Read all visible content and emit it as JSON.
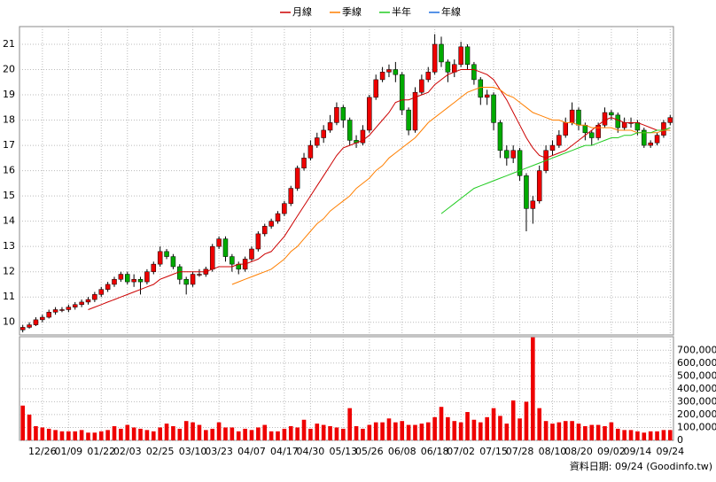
{
  "chart_data": {
    "type": "candlestick",
    "categories": [
      null,
      null,
      null,
      "12/26",
      null,
      null,
      null,
      "01/09",
      null,
      null,
      null,
      null,
      "01/22",
      null,
      null,
      null,
      "02/03",
      null,
      null,
      null,
      null,
      "02/25",
      null,
      null,
      null,
      null,
      "03/10",
      null,
      null,
      null,
      "03/23",
      null,
      null,
      null,
      null,
      "04/07",
      null,
      null,
      null,
      null,
      "04/17",
      null,
      null,
      null,
      "04/30",
      null,
      null,
      null,
      null,
      "05/13",
      null,
      null,
      null,
      "05/26",
      null,
      null,
      null,
      null,
      "06/08",
      null,
      null,
      null,
      null,
      "06/18",
      null,
      null,
      null,
      "07/02",
      null,
      null,
      null,
      null,
      "07/15",
      null,
      null,
      null,
      "07/28",
      null,
      null,
      null,
      null,
      "08/10",
      null,
      null,
      null,
      "08/20",
      null,
      null,
      null,
      null,
      "09/02",
      null,
      null,
      null,
      "09/14",
      null,
      null,
      null,
      null,
      "09/24"
    ],
    "open": [
      9.7,
      9.8,
      9.9,
      10.1,
      10.2,
      10.4,
      10.5,
      10.5,
      10.6,
      10.7,
      10.8,
      10.9,
      11.1,
      11.3,
      11.5,
      11.7,
      11.9,
      11.6,
      11.7,
      11.6,
      12.0,
      12.3,
      12.8,
      12.6,
      12.2,
      11.7,
      11.5,
      11.9,
      11.9,
      12.1,
      13.0,
      13.3,
      12.6,
      12.3,
      12.1,
      12.5,
      12.9,
      13.5,
      13.8,
      14.0,
      14.3,
      14.7,
      15.3,
      16.1,
      16.5,
      17.0,
      17.3,
      17.6,
      17.9,
      18.5,
      18.0,
      17.2,
      17.1,
      17.6,
      18.9,
      19.6,
      19.9,
      20.0,
      19.8,
      18.4,
      17.6,
      19.1,
      19.6,
      19.9,
      21.0,
      20.3,
      19.9,
      20.2,
      20.9,
      20.2,
      19.6,
      18.9,
      19.0,
      17.9,
      16.8,
      16.5,
      16.8,
      15.8,
      14.5,
      14.8,
      16.0,
      16.8,
      17.0,
      17.4,
      17.9,
      18.4,
      17.8,
      17.5,
      17.3,
      17.8,
      18.3,
      18.2,
      17.7,
      17.9,
      17.9,
      17.6,
      17.0,
      17.1,
      17.4,
      17.9
    ],
    "high": [
      9.9,
      10.0,
      10.2,
      10.3,
      10.5,
      10.6,
      10.6,
      10.7,
      10.8,
      10.9,
      11.0,
      11.2,
      11.4,
      11.6,
      11.8,
      12.0,
      12.0,
      11.9,
      11.8,
      12.1,
      12.4,
      13.0,
      12.9,
      12.7,
      12.3,
      11.8,
      12.0,
      12.1,
      12.2,
      13.1,
      13.4,
      13.4,
      12.7,
      12.4,
      12.6,
      13.0,
      13.6,
      13.9,
      14.1,
      14.4,
      14.8,
      15.4,
      16.2,
      16.7,
      17.2,
      17.5,
      17.8,
      18.2,
      18.7,
      18.6,
      18.1,
      17.4,
      17.8,
      19.0,
      19.8,
      20.1,
      20.2,
      20.3,
      19.9,
      18.5,
      19.3,
      19.8,
      20.1,
      21.4,
      21.3,
      20.4,
      20.4,
      21.1,
      21.0,
      20.3,
      19.7,
      19.2,
      19.1,
      18.0,
      17.0,
      17.0,
      16.9,
      15.9,
      15.0,
      16.2,
      17.0,
      17.2,
      17.6,
      18.1,
      18.7,
      18.5,
      17.9,
      17.6,
      17.9,
      18.5,
      18.4,
      18.3,
      18.1,
      18.1,
      18.0,
      17.7,
      17.2,
      17.5,
      18.0,
      18.2
    ],
    "low": [
      9.6,
      9.75,
      9.85,
      10.0,
      10.15,
      10.3,
      10.4,
      10.4,
      10.5,
      10.6,
      10.7,
      10.8,
      11.0,
      11.2,
      11.4,
      11.6,
      11.5,
      11.4,
      11.1,
      11.5,
      11.9,
      12.2,
      12.5,
      12.1,
      11.5,
      11.1,
      11.4,
      11.8,
      11.8,
      12.0,
      12.9,
      12.4,
      12.0,
      11.9,
      12.0,
      12.4,
      12.8,
      13.4,
      13.7,
      13.9,
      14.2,
      14.6,
      15.2,
      16.0,
      16.4,
      16.9,
      17.1,
      17.5,
      17.8,
      17.7,
      17.0,
      16.9,
      17.0,
      17.5,
      18.8,
      19.5,
      19.7,
      19.5,
      18.2,
      17.4,
      17.5,
      19.0,
      19.5,
      19.8,
      20.1,
      19.5,
      19.7,
      20.1,
      20.0,
      19.4,
      18.6,
      18.6,
      17.6,
      16.5,
      16.2,
      16.3,
      15.6,
      13.6,
      13.9,
      14.7,
      15.9,
      16.6,
      16.9,
      17.3,
      17.8,
      17.6,
      17.2,
      17.0,
      17.2,
      17.7,
      18.0,
      17.5,
      17.6,
      17.7,
      17.4,
      16.9,
      16.9,
      17.0,
      17.3,
      17.8
    ],
    "close": [
      9.8,
      9.9,
      10.1,
      10.2,
      10.4,
      10.5,
      10.5,
      10.6,
      10.7,
      10.8,
      10.9,
      11.1,
      11.3,
      11.5,
      11.7,
      11.9,
      11.6,
      11.7,
      11.6,
      12.0,
      12.3,
      12.8,
      12.6,
      12.2,
      11.7,
      11.5,
      11.9,
      11.9,
      12.1,
      13.0,
      13.3,
      12.6,
      12.3,
      12.1,
      12.5,
      12.9,
      13.5,
      13.8,
      14.0,
      14.3,
      14.7,
      15.3,
      16.1,
      16.5,
      17.0,
      17.3,
      17.6,
      17.9,
      18.5,
      18.0,
      17.2,
      17.1,
      17.6,
      18.9,
      19.6,
      19.9,
      20.0,
      19.8,
      18.4,
      17.6,
      19.1,
      19.6,
      19.9,
      21.0,
      20.3,
      19.9,
      20.2,
      20.9,
      20.2,
      19.6,
      18.9,
      19.0,
      17.9,
      16.8,
      16.5,
      16.8,
      15.8,
      14.5,
      14.8,
      16.0,
      16.8,
      17.0,
      17.4,
      17.9,
      18.4,
      17.8,
      17.5,
      17.3,
      17.8,
      18.3,
      18.2,
      17.7,
      17.9,
      17.9,
      17.6,
      17.0,
      17.1,
      17.4,
      17.9,
      18.1
    ],
    "up_color": "#ee0000",
    "down_color": "#00aa00",
    "series": [
      {
        "name": "月線",
        "color": "#cc0000",
        "values": [
          null,
          null,
          null,
          null,
          null,
          null,
          null,
          null,
          null,
          null,
          10.5,
          10.6,
          10.7,
          10.8,
          10.9,
          11,
          11.1,
          11.2,
          11.3,
          11.4,
          11.5,
          11.7,
          11.8,
          11.9,
          12,
          12,
          12,
          12,
          12,
          12.1,
          12.2,
          12.2,
          12.2,
          12.3,
          12.3,
          12.4,
          12.5,
          12.7,
          12.8,
          13.1,
          13.4,
          13.8,
          14.2,
          14.6,
          15,
          15.4,
          15.8,
          16.2,
          16.6,
          16.9,
          17,
          17.1,
          17.2,
          17.4,
          17.7,
          18,
          18.3,
          18.7,
          18.8,
          18.8,
          18.9,
          19,
          19.1,
          19.4,
          19.6,
          19.8,
          19.9,
          20,
          20,
          20,
          19.9,
          19.8,
          19.6,
          19.2,
          18.8,
          18.3,
          17.8,
          17.3,
          16.9,
          16.6,
          16.5,
          16.6,
          16.7,
          16.8,
          17,
          17.2,
          17.4,
          17.6,
          17.8,
          18,
          18.1,
          18,
          17.9,
          17.9,
          17.9,
          17.8,
          17.7,
          17.6,
          17.6,
          17.7
        ]
      },
      {
        "name": "季線",
        "color": "#ff7f00",
        "values": [
          null,
          null,
          null,
          null,
          null,
          null,
          null,
          null,
          null,
          null,
          null,
          null,
          null,
          null,
          null,
          null,
          null,
          null,
          null,
          null,
          null,
          null,
          null,
          null,
          null,
          null,
          null,
          null,
          null,
          null,
          null,
          null,
          11.5,
          11.6,
          11.7,
          11.8,
          11.9,
          12,
          12.1,
          12.3,
          12.5,
          12.8,
          13,
          13.3,
          13.6,
          13.9,
          14.1,
          14.4,
          14.6,
          14.8,
          15,
          15.3,
          15.5,
          15.7,
          16,
          16.2,
          16.5,
          16.7,
          16.9,
          17.1,
          17.3,
          17.6,
          17.9,
          18.1,
          18.3,
          18.5,
          18.7,
          18.9,
          19.1,
          19.2,
          19.3,
          19.3,
          19.3,
          19.2,
          19,
          18.9,
          18.7,
          18.5,
          18.3,
          18.2,
          18.1,
          18,
          18,
          17.9,
          17.9,
          17.8,
          17.8,
          17.7,
          17.7,
          17.7,
          17.7,
          17.6,
          17.6,
          17.6,
          17.5,
          17.5,
          17.5,
          17.5,
          17.6,
          17.6
        ]
      },
      {
        "name": "半年",
        "color": "#22cc22",
        "values": [
          null,
          null,
          null,
          null,
          null,
          null,
          null,
          null,
          null,
          null,
          null,
          null,
          null,
          null,
          null,
          null,
          null,
          null,
          null,
          null,
          null,
          null,
          null,
          null,
          null,
          null,
          null,
          null,
          null,
          null,
          null,
          null,
          null,
          null,
          null,
          null,
          null,
          null,
          null,
          null,
          null,
          null,
          null,
          null,
          null,
          null,
          null,
          null,
          null,
          null,
          null,
          null,
          null,
          null,
          null,
          null,
          null,
          null,
          null,
          null,
          null,
          null,
          null,
          null,
          14.3,
          14.5,
          14.7,
          14.9,
          15.1,
          15.3,
          15.4,
          15.5,
          15.6,
          15.7,
          15.8,
          15.9,
          16,
          16.1,
          16.2,
          16.3,
          16.4,
          16.5,
          16.6,
          16.7,
          16.8,
          16.9,
          17,
          17,
          17.1,
          17.2,
          17.3,
          17.3,
          17.4,
          17.4,
          17.5,
          17.5,
          17.5,
          17.6,
          17.6,
          17.7
        ]
      },
      {
        "name": "年線",
        "color": "#1f6fdf",
        "values": [
          null,
          null,
          null,
          null,
          null,
          null,
          null,
          null,
          null,
          null,
          null,
          null,
          null,
          null,
          null,
          null,
          null,
          null,
          null,
          null,
          null,
          null,
          null,
          null,
          null,
          null,
          null,
          null,
          null,
          null,
          null,
          null,
          null,
          null,
          null,
          null,
          null,
          null,
          null,
          null,
          null,
          null,
          null,
          null,
          null,
          null,
          null,
          null,
          null,
          null,
          null,
          null,
          null,
          null,
          null,
          null,
          null,
          null,
          null,
          null,
          null,
          null,
          null,
          null,
          null,
          null,
          null,
          null,
          null,
          null,
          null,
          null,
          null,
          null,
          null,
          null,
          null,
          null,
          null,
          null,
          null,
          null,
          null,
          null,
          null,
          null,
          null,
          null,
          null,
          null,
          null,
          null,
          null,
          null,
          null,
          null,
          null,
          null,
          null,
          null
        ]
      }
    ],
    "ylim": [
      9.5,
      21.7
    ],
    "yticks": [
      10,
      11,
      12,
      13,
      14,
      15,
      16,
      17,
      18,
      19,
      20,
      21
    ],
    "volume": [
      270000,
      200000,
      110000,
      100000,
      90000,
      80000,
      70000,
      70000,
      70000,
      80000,
      60000,
      60000,
      70000,
      80000,
      110000,
      90000,
      120000,
      100000,
      90000,
      80000,
      70000,
      100000,
      130000,
      110000,
      90000,
      150000,
      140000,
      120000,
      80000,
      90000,
      140000,
      100000,
      100000,
      70000,
      90000,
      80000,
      100000,
      120000,
      70000,
      70000,
      90000,
      110000,
      100000,
      160000,
      90000,
      130000,
      120000,
      110000,
      100000,
      90000,
      250000,
      110000,
      90000,
      120000,
      140000,
      140000,
      170000,
      140000,
      150000,
      120000,
      120000,
      130000,
      140000,
      180000,
      260000,
      180000,
      150000,
      140000,
      220000,
      160000,
      140000,
      180000,
      250000,
      190000,
      130000,
      310000,
      170000,
      300000,
      800000,
      250000,
      150000,
      130000,
      140000,
      150000,
      150000,
      130000,
      110000,
      120000,
      120000,
      110000,
      140000,
      90000,
      80000,
      80000,
      70000,
      60000,
      70000,
      70000,
      80000,
      80000
    ],
    "volume_color": "#ee0000",
    "y2lim": [
      0,
      805000
    ],
    "y2ticks": [
      0,
      {
        "value": 100000,
        "label": "100,000"
      },
      {
        "value": 200000,
        "label": "200,000"
      },
      {
        "value": 300000,
        "label": "300,000"
      },
      {
        "value": 400000,
        "label": "400,000"
      },
      {
        "value": 500000,
        "label": "500,000"
      },
      {
        "value": 600000,
        "label": "600,000"
      },
      {
        "value": 700000,
        "label": "700,000"
      }
    ],
    "grid": true,
    "footer": "資料日期: 09/24 (Goodinfo.tw)"
  }
}
